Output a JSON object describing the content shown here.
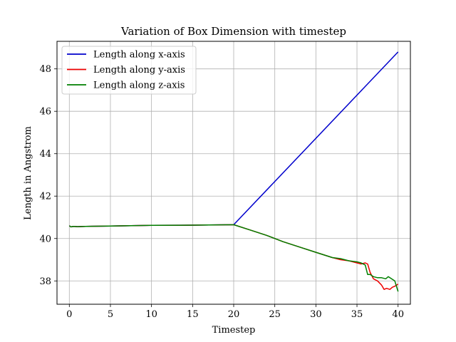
{
  "chart_data": {
    "type": "line",
    "title": "Variation of Box Dimension with timestep",
    "xlabel": "Timestep",
    "ylabel": "Length in Angstrom",
    "xlim": [
      -1.5,
      41.5
    ],
    "ylim": [
      36.9,
      49.3
    ],
    "xticks": [
      0,
      5,
      10,
      15,
      20,
      25,
      30,
      35,
      40
    ],
    "yticks": [
      38,
      40,
      42,
      44,
      46,
      48
    ],
    "grid": true,
    "legend_position": "top-left",
    "series": [
      {
        "name": "Length along x-axis",
        "color": "#0000cc",
        "x": [
          0,
          0.2,
          0.5,
          1,
          2,
          5,
          10,
          15,
          20,
          40
        ],
        "y": [
          40.6,
          40.55,
          40.57,
          40.56,
          40.57,
          40.59,
          40.62,
          40.63,
          40.65,
          48.8
        ]
      },
      {
        "name": "Length along y-axis",
        "color": "#ee0000",
        "x": [
          0,
          0.2,
          0.5,
          1,
          2,
          5,
          10,
          15,
          20,
          22,
          24,
          26,
          28,
          30,
          32,
          33,
          34,
          35,
          35.5,
          36,
          36.3,
          36.6,
          37,
          37.5,
          38,
          38.3,
          38.6,
          39,
          39.3,
          39.6,
          40
        ],
        "y": [
          40.6,
          40.55,
          40.57,
          40.56,
          40.57,
          40.59,
          40.62,
          40.63,
          40.65,
          40.4,
          40.15,
          39.85,
          39.6,
          39.35,
          39.1,
          39.0,
          38.95,
          38.85,
          38.8,
          38.85,
          38.8,
          38.4,
          38.1,
          38.0,
          37.8,
          37.6,
          37.65,
          37.6,
          37.7,
          37.75,
          37.85
        ]
      },
      {
        "name": "Length along z-axis",
        "color": "#007f00",
        "x": [
          0,
          0.2,
          0.5,
          1,
          2,
          5,
          10,
          15,
          20,
          22,
          24,
          26,
          28,
          30,
          32,
          33,
          34,
          35,
          35.5,
          36,
          36.3,
          36.6,
          37,
          37.5,
          38,
          38.5,
          38.8,
          39.2,
          39.6,
          40
        ],
        "y": [
          40.6,
          40.55,
          40.57,
          40.56,
          40.57,
          40.59,
          40.62,
          40.63,
          40.65,
          40.4,
          40.15,
          39.85,
          39.6,
          39.35,
          39.1,
          39.05,
          38.95,
          38.9,
          38.85,
          38.75,
          38.3,
          38.3,
          38.2,
          38.15,
          38.15,
          38.1,
          38.2,
          38.1,
          38.0,
          37.5
        ]
      }
    ]
  }
}
